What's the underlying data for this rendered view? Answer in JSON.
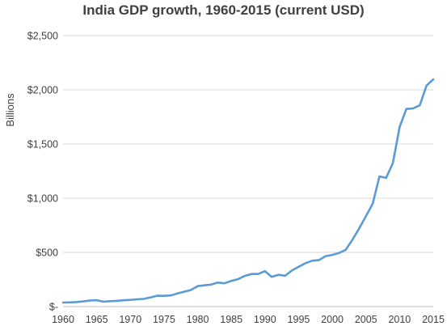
{
  "chart_data": {
    "type": "line",
    "title": "India GDP growth, 1960-2015 (current USD)",
    "xlabel": "",
    "ylabel": "Billions",
    "xlim": [
      1960,
      2015
    ],
    "ylim": [
      0,
      2500
    ],
    "grid": true,
    "line_color": "#5B9BD5",
    "x_ticks": [
      1960,
      1965,
      1970,
      1975,
      1980,
      1985,
      1990,
      1995,
      2000,
      2005,
      2010,
      2015
    ],
    "y_ticks": [
      {
        "value": 0,
        "label": "$-"
      },
      {
        "value": 500,
        "label": "$500"
      },
      {
        "value": 1000,
        "label": "$1,000"
      },
      {
        "value": 1500,
        "label": "$1,500"
      },
      {
        "value": 2000,
        "label": "$2,000"
      },
      {
        "value": 2500,
        "label": "$2,500"
      }
    ],
    "x": [
      1960,
      1961,
      1962,
      1963,
      1964,
      1965,
      1966,
      1967,
      1968,
      1969,
      1970,
      1971,
      1972,
      1973,
      1974,
      1975,
      1976,
      1977,
      1978,
      1979,
      1980,
      1981,
      1982,
      1983,
      1984,
      1985,
      1986,
      1987,
      1988,
      1989,
      1990,
      1991,
      1992,
      1993,
      1994,
      1995,
      1996,
      1997,
      1998,
      1999,
      2000,
      2001,
      2002,
      2003,
      2004,
      2005,
      2006,
      2007,
      2008,
      2009,
      2010,
      2011,
      2012,
      2013,
      2014,
      2015
    ],
    "y": [
      37,
      39,
      42,
      48,
      56,
      59,
      45,
      50,
      53,
      58,
      62,
      67,
      71,
      85,
      100,
      99,
      103,
      121,
      137,
      153,
      189,
      196,
      203,
      222,
      215,
      237,
      253,
      283,
      301,
      301,
      327,
      274,
      293,
      284,
      333,
      367,
      400,
      423,
      428,
      466,
      477,
      494,
      524,
      618,
      722,
      834,
      949,
      1201,
      1187,
      1324,
      1657,
      1823,
      1828,
      1857,
      2039,
      2096
    ]
  }
}
